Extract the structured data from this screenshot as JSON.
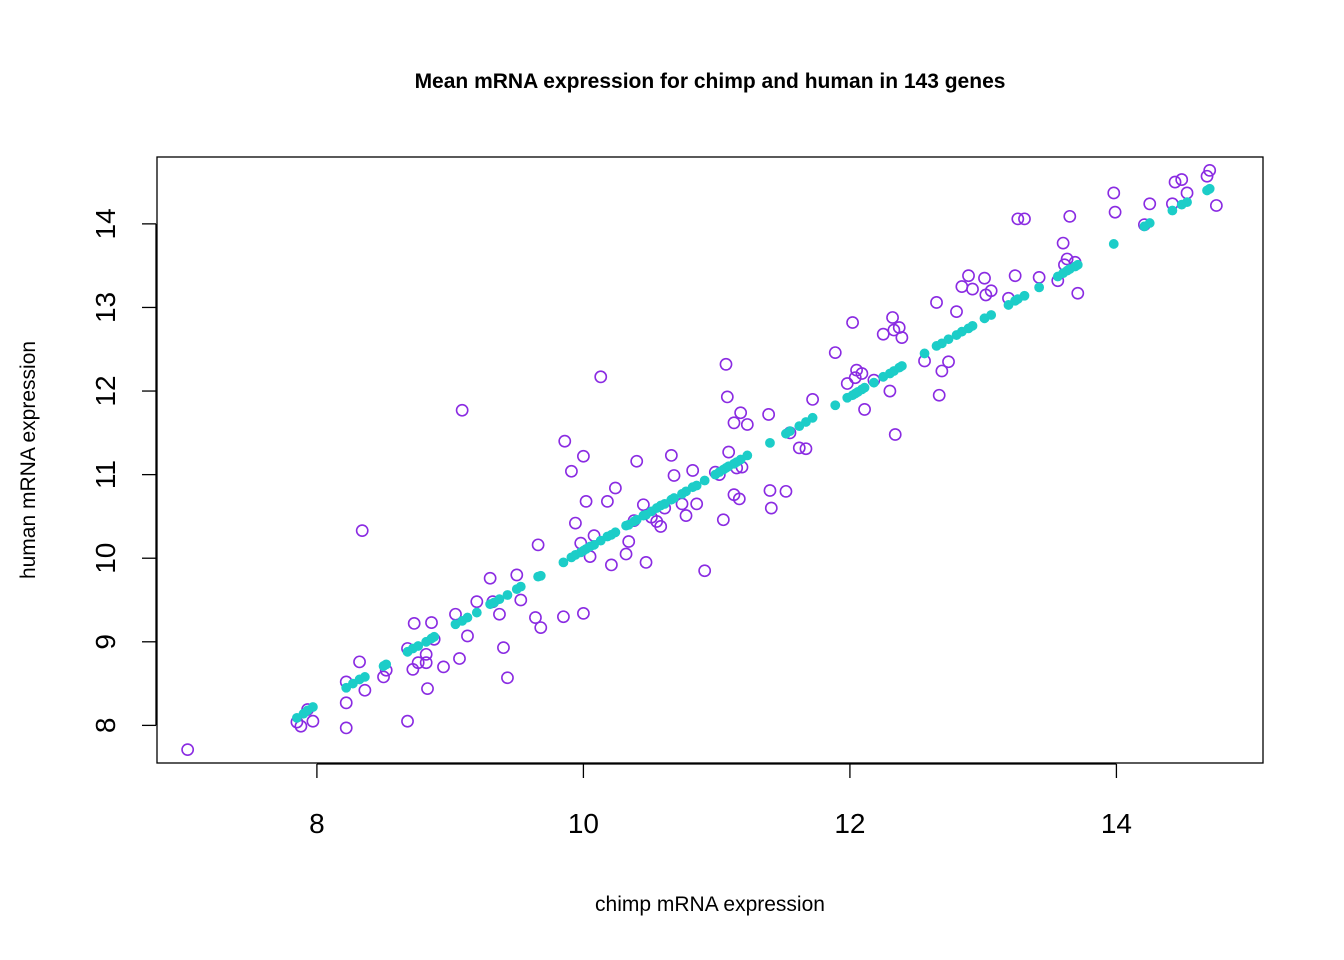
{
  "chart_data": {
    "type": "scatter",
    "title": "Mean mRNA expression for chimp and human in 143 genes",
    "xlabel": "chimp mRNA expression",
    "ylabel": "human mRNA expression",
    "xlim": [
      6.8,
      15.1
    ],
    "ylim": [
      7.55,
      14.8
    ],
    "xticks": [
      8,
      10,
      12,
      14
    ],
    "yticks": [
      8,
      9,
      10,
      11,
      12,
      13,
      14
    ],
    "grid": false,
    "legend": "none",
    "colors": {
      "observed": "#8A2BE2",
      "fitted": "#1CCDC8"
    },
    "series": [
      {
        "marker": "open-circle",
        "color": "#8A2BE2",
        "points": [
          [
            7.03,
            7.71
          ],
          [
            7.85,
            8.04
          ],
          [
            7.88,
            7.99
          ],
          [
            7.93,
            8.19
          ],
          [
            7.97,
            8.05
          ],
          [
            8.22,
            7.97
          ],
          [
            8.22,
            8.27
          ],
          [
            8.22,
            8.52
          ],
          [
            8.32,
            8.76
          ],
          [
            8.34,
            10.33
          ],
          [
            8.36,
            8.42
          ],
          [
            8.5,
            8.58
          ],
          [
            8.52,
            8.66
          ],
          [
            8.68,
            8.92
          ],
          [
            8.68,
            8.05
          ],
          [
            8.72,
            8.67
          ],
          [
            8.73,
            9.22
          ],
          [
            8.76,
            8.75
          ],
          [
            8.82,
            8.85
          ],
          [
            8.82,
            8.75
          ],
          [
            8.83,
            8.44
          ],
          [
            8.86,
            9.23
          ],
          [
            8.88,
            9.03
          ],
          [
            8.95,
            8.7
          ],
          [
            9.04,
            9.33
          ],
          [
            9.07,
            8.8
          ],
          [
            9.09,
            11.77
          ],
          [
            9.13,
            9.07
          ],
          [
            9.2,
            9.48
          ],
          [
            9.3,
            9.76
          ],
          [
            9.32,
            9.48
          ],
          [
            9.37,
            9.33
          ],
          [
            9.4,
            8.93
          ],
          [
            9.43,
            8.57
          ],
          [
            9.5,
            9.8
          ],
          [
            9.53,
            9.5
          ],
          [
            9.64,
            9.29
          ],
          [
            9.66,
            10.16
          ],
          [
            9.68,
            9.17
          ],
          [
            9.85,
            9.3
          ],
          [
            9.86,
            11.4
          ],
          [
            9.91,
            11.04
          ],
          [
            9.94,
            10.42
          ],
          [
            9.98,
            10.18
          ],
          [
            10.0,
            11.22
          ],
          [
            10.0,
            9.34
          ],
          [
            10.02,
            10.68
          ],
          [
            10.05,
            10.02
          ],
          [
            10.08,
            10.27
          ],
          [
            10.13,
            12.17
          ],
          [
            10.18,
            10.68
          ],
          [
            10.21,
            9.92
          ],
          [
            10.24,
            10.84
          ],
          [
            10.32,
            10.05
          ],
          [
            10.34,
            10.2
          ],
          [
            10.38,
            10.45
          ],
          [
            10.4,
            11.16
          ],
          [
            10.45,
            10.64
          ],
          [
            10.47,
            9.95
          ],
          [
            10.51,
            10.49
          ],
          [
            10.55,
            10.44
          ],
          [
            10.58,
            10.38
          ],
          [
            10.61,
            10.6
          ],
          [
            10.66,
            11.23
          ],
          [
            10.68,
            10.99
          ],
          [
            10.74,
            10.65
          ],
          [
            10.77,
            10.51
          ],
          [
            10.82,
            11.05
          ],
          [
            10.85,
            10.65
          ],
          [
            10.91,
            9.85
          ],
          [
            10.99,
            11.03
          ],
          [
            11.02,
            11.0
          ],
          [
            11.05,
            10.46
          ],
          [
            11.07,
            12.32
          ],
          [
            11.08,
            11.93
          ],
          [
            11.09,
            11.27
          ],
          [
            11.13,
            11.62
          ],
          [
            11.13,
            10.76
          ],
          [
            11.15,
            11.08
          ],
          [
            11.17,
            10.71
          ],
          [
            11.18,
            11.74
          ],
          [
            11.19,
            11.09
          ],
          [
            11.23,
            11.6
          ],
          [
            11.39,
            11.72
          ],
          [
            11.4,
            10.81
          ],
          [
            11.41,
            10.6
          ],
          [
            11.52,
            10.8
          ],
          [
            11.55,
            11.5
          ],
          [
            11.62,
            11.32
          ],
          [
            11.67,
            11.31
          ],
          [
            11.72,
            11.9
          ],
          [
            11.89,
            12.46
          ],
          [
            11.98,
            12.09
          ],
          [
            12.02,
            12.82
          ],
          [
            12.04,
            12.16
          ],
          [
            12.05,
            12.25
          ],
          [
            12.09,
            12.21
          ],
          [
            12.11,
            11.78
          ],
          [
            12.18,
            12.13
          ],
          [
            12.25,
            12.68
          ],
          [
            12.3,
            12.0
          ],
          [
            12.32,
            12.88
          ],
          [
            12.33,
            12.73
          ],
          [
            12.34,
            11.48
          ],
          [
            12.37,
            12.76
          ],
          [
            12.39,
            12.64
          ],
          [
            12.56,
            12.36
          ],
          [
            12.65,
            13.06
          ],
          [
            12.67,
            11.95
          ],
          [
            12.69,
            12.24
          ],
          [
            12.74,
            12.35
          ],
          [
            12.8,
            12.95
          ],
          [
            12.84,
            13.25
          ],
          [
            12.89,
            13.38
          ],
          [
            12.92,
            13.22
          ],
          [
            13.01,
            13.35
          ],
          [
            13.02,
            13.15
          ],
          [
            13.06,
            13.2
          ],
          [
            13.19,
            13.11
          ],
          [
            13.24,
            13.38
          ],
          [
            13.26,
            14.06
          ],
          [
            13.31,
            14.06
          ],
          [
            13.42,
            13.36
          ],
          [
            13.56,
            13.32
          ],
          [
            13.6,
            13.77
          ],
          [
            13.61,
            13.51
          ],
          [
            13.63,
            13.58
          ],
          [
            13.65,
            14.09
          ],
          [
            13.69,
            13.54
          ],
          [
            13.71,
            13.17
          ],
          [
            13.98,
            14.37
          ],
          [
            13.99,
            14.14
          ],
          [
            14.21,
            13.99
          ],
          [
            14.25,
            14.24
          ],
          [
            14.42,
            14.24
          ],
          [
            14.44,
            14.5
          ],
          [
            14.49,
            14.53
          ],
          [
            14.53,
            14.37
          ],
          [
            14.68,
            14.57
          ],
          [
            14.7,
            14.64
          ],
          [
            14.75,
            14.22
          ]
        ]
      },
      {
        "marker": "filled-circle",
        "color": "#1CCDC8",
        "points": [
          [
            7.85,
            8.09
          ],
          [
            7.9,
            8.14
          ],
          [
            7.93,
            8.18
          ],
          [
            7.97,
            8.22
          ],
          [
            8.22,
            8.45
          ],
          [
            8.27,
            8.5
          ],
          [
            8.32,
            8.55
          ],
          [
            8.36,
            8.58
          ],
          [
            8.5,
            8.71
          ],
          [
            8.52,
            8.73
          ],
          [
            8.68,
            8.88
          ],
          [
            8.72,
            8.92
          ],
          [
            8.76,
            8.95
          ],
          [
            8.82,
            9.0
          ],
          [
            8.86,
            9.04
          ],
          [
            8.88,
            9.06
          ],
          [
            9.04,
            9.21
          ],
          [
            9.09,
            9.25
          ],
          [
            9.13,
            9.29
          ],
          [
            9.2,
            9.35
          ],
          [
            9.3,
            9.45
          ],
          [
            9.33,
            9.47
          ],
          [
            9.37,
            9.51
          ],
          [
            9.43,
            9.56
          ],
          [
            9.5,
            9.63
          ],
          [
            9.53,
            9.66
          ],
          [
            9.66,
            9.78
          ],
          [
            9.68,
            9.79
          ],
          [
            9.85,
            9.95
          ],
          [
            9.91,
            10.01
          ],
          [
            9.94,
            10.04
          ],
          [
            9.98,
            10.07
          ],
          [
            10.0,
            10.09
          ],
          [
            10.02,
            10.11
          ],
          [
            10.05,
            10.14
          ],
          [
            10.08,
            10.16
          ],
          [
            10.13,
            10.21
          ],
          [
            10.18,
            10.26
          ],
          [
            10.21,
            10.28
          ],
          [
            10.24,
            10.31
          ],
          [
            10.32,
            10.39
          ],
          [
            10.34,
            10.4
          ],
          [
            10.38,
            10.44
          ],
          [
            10.4,
            10.46
          ],
          [
            10.45,
            10.51
          ],
          [
            10.47,
            10.52
          ],
          [
            10.51,
            10.56
          ],
          [
            10.55,
            10.6
          ],
          [
            10.58,
            10.63
          ],
          [
            10.61,
            10.65
          ],
          [
            10.66,
            10.7
          ],
          [
            10.68,
            10.72
          ],
          [
            10.74,
            10.77
          ],
          [
            10.77,
            10.8
          ],
          [
            10.82,
            10.85
          ],
          [
            10.85,
            10.87
          ],
          [
            10.91,
            10.93
          ],
          [
            10.99,
            11.0
          ],
          [
            11.02,
            11.03
          ],
          [
            11.05,
            11.06
          ],
          [
            11.07,
            11.08
          ],
          [
            11.09,
            11.1
          ],
          [
            11.13,
            11.13
          ],
          [
            11.15,
            11.15
          ],
          [
            11.18,
            11.18
          ],
          [
            11.23,
            11.23
          ],
          [
            11.4,
            11.38
          ],
          [
            11.52,
            11.49
          ],
          [
            11.55,
            11.52
          ],
          [
            11.62,
            11.58
          ],
          [
            11.67,
            11.63
          ],
          [
            11.72,
            11.68
          ],
          [
            11.89,
            11.83
          ],
          [
            11.98,
            11.92
          ],
          [
            12.02,
            11.95
          ],
          [
            12.04,
            11.97
          ],
          [
            12.06,
            11.99
          ],
          [
            12.09,
            12.02
          ],
          [
            12.11,
            12.04
          ],
          [
            12.18,
            12.1
          ],
          [
            12.25,
            12.17
          ],
          [
            12.3,
            12.21
          ],
          [
            12.33,
            12.24
          ],
          [
            12.37,
            12.28
          ],
          [
            12.39,
            12.3
          ],
          [
            12.56,
            12.45
          ],
          [
            12.65,
            12.54
          ],
          [
            12.69,
            12.57
          ],
          [
            12.74,
            12.62
          ],
          [
            12.8,
            12.67
          ],
          [
            12.84,
            12.71
          ],
          [
            12.89,
            12.75
          ],
          [
            12.92,
            12.78
          ],
          [
            13.01,
            12.87
          ],
          [
            13.06,
            12.91
          ],
          [
            13.19,
            13.03
          ],
          [
            13.24,
            13.08
          ],
          [
            13.26,
            13.1
          ],
          [
            13.31,
            13.14
          ],
          [
            13.42,
            13.24
          ],
          [
            13.56,
            13.37
          ],
          [
            13.6,
            13.41
          ],
          [
            13.63,
            13.44
          ],
          [
            13.65,
            13.46
          ],
          [
            13.69,
            13.49
          ],
          [
            13.71,
            13.51
          ],
          [
            13.98,
            13.76
          ],
          [
            14.21,
            13.97
          ],
          [
            14.25,
            14.01
          ],
          [
            14.42,
            14.16
          ],
          [
            14.49,
            14.23
          ],
          [
            14.53,
            14.26
          ],
          [
            14.68,
            14.4
          ],
          [
            14.7,
            14.42
          ]
        ]
      }
    ]
  }
}
